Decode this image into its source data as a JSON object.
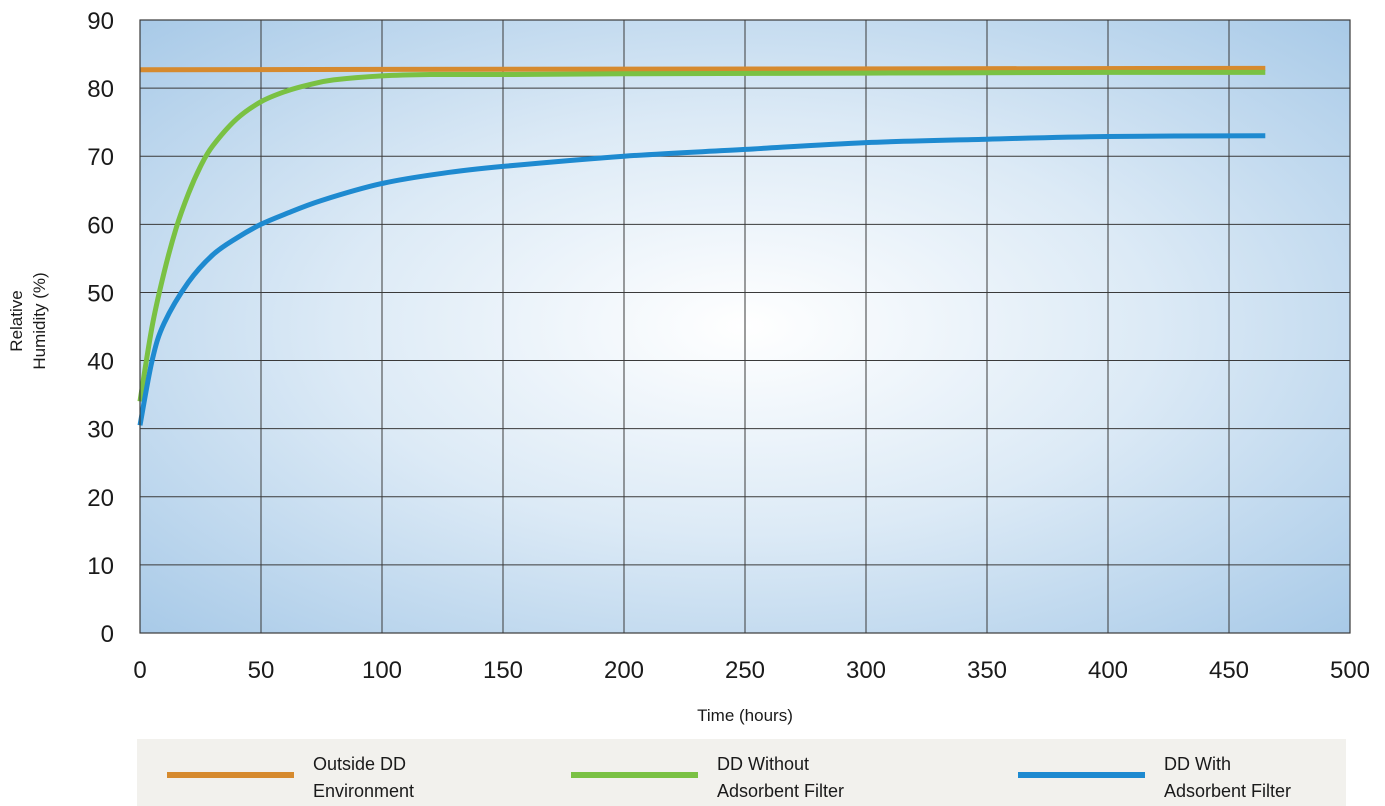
{
  "chart_data": {
    "type": "line",
    "xlabel": "Time (hours)",
    "ylabel_lines": [
      "Relative",
      "Humidity (%)"
    ],
    "xlim": [
      0,
      500
    ],
    "ylim": [
      0,
      90
    ],
    "x_ticks": [
      0,
      50,
      100,
      150,
      200,
      250,
      300,
      350,
      400,
      450,
      500
    ],
    "y_ticks": [
      0,
      10,
      20,
      30,
      40,
      50,
      60,
      70,
      80,
      90
    ],
    "grid": true,
    "legend_position": "bottom",
    "series": [
      {
        "name_lines": [
          "Outside DD",
          "Environment"
        ],
        "color": "#d68a2e",
        "x": [
          0,
          465
        ],
        "y": [
          82.7,
          82.9
        ]
      },
      {
        "name_lines": [
          "DD Without",
          "Adsorbent Filter"
        ],
        "color": "#7ac143",
        "x": [
          0,
          5,
          10,
          15,
          20,
          25,
          30,
          40,
          50,
          60,
          70,
          80,
          100,
          120,
          150,
          200,
          300,
          400,
          465
        ],
        "y": [
          34,
          45,
          53,
          59.5,
          64.5,
          68.5,
          71.5,
          75.5,
          78,
          79.5,
          80.5,
          81.2,
          81.8,
          82,
          82,
          82.1,
          82.2,
          82.3,
          82.3
        ]
      },
      {
        "name_lines": [
          "DD With",
          "Adsorbent Filter"
        ],
        "color": "#1e8ad0",
        "x": [
          0,
          5,
          10,
          20,
          30,
          40,
          50,
          60,
          75,
          100,
          125,
          150,
          200,
          250,
          300,
          350,
          400,
          465
        ],
        "y": [
          30.5,
          40,
          45.5,
          51.5,
          55.5,
          58,
          60,
          61.5,
          63.5,
          66,
          67.5,
          68.5,
          70,
          71,
          72,
          72.5,
          72.9,
          73
        ]
      }
    ]
  }
}
